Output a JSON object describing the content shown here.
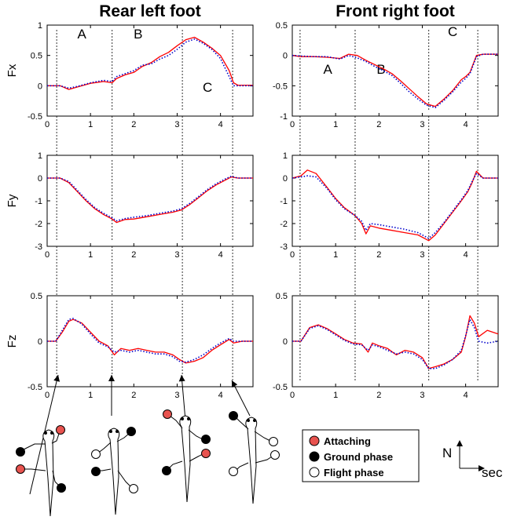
{
  "chart_data": [
    {
      "type": "line",
      "panel": "rear-fx",
      "title": "Rear left foot",
      "ylabel": "Fx",
      "xlim": [
        0,
        4.75
      ],
      "ylim": [
        -0.5,
        1
      ],
      "xticks": [
        "0",
        "1",
        "2",
        "3",
        "4"
      ],
      "yticks": [
        "1",
        "0.5",
        "0",
        "-0.5"
      ],
      "phase_lines": [
        0.22,
        1.5,
        3.12,
        4.28
      ],
      "phase_labels": [
        {
          "text": "A",
          "x": 0.8,
          "y": 0.78
        },
        {
          "text": "B",
          "x": 2.1,
          "y": 0.78
        },
        {
          "text": "C",
          "x": 3.7,
          "y": -0.1
        }
      ],
      "series": [
        {
          "style": "solid",
          "color": "#ff0000",
          "x": [
            0,
            0.3,
            0.5,
            0.7,
            1.0,
            1.3,
            1.5,
            1.6,
            1.8,
            2.0,
            2.2,
            2.4,
            2.6,
            2.8,
            3.0,
            3.2,
            3.4,
            3.6,
            3.8,
            4.0,
            4.2,
            4.3,
            4.4,
            4.75
          ],
          "y": [
            0,
            0,
            -0.06,
            -0.02,
            0.04,
            0.07,
            0.05,
            0.12,
            0.18,
            0.22,
            0.32,
            0.38,
            0.48,
            0.55,
            0.66,
            0.76,
            0.8,
            0.72,
            0.62,
            0.5,
            0.25,
            0.05,
            0.01,
            0.01
          ]
        },
        {
          "style": "dotted",
          "color": "#0000cc",
          "x": [
            0,
            0.3,
            0.5,
            0.7,
            1.0,
            1.3,
            1.5,
            1.6,
            1.8,
            2.0,
            2.2,
            2.4,
            2.6,
            2.8,
            3.0,
            3.2,
            3.4,
            3.6,
            3.8,
            4.0,
            4.2,
            4.3,
            4.4,
            4.75
          ],
          "y": [
            0,
            0,
            -0.04,
            -0.01,
            0.05,
            0.09,
            0.07,
            0.15,
            0.2,
            0.25,
            0.34,
            0.36,
            0.44,
            0.5,
            0.6,
            0.72,
            0.77,
            0.7,
            0.6,
            0.45,
            0.15,
            0.0,
            0.0,
            0.0
          ]
        }
      ]
    },
    {
      "type": "line",
      "panel": "front-fx",
      "title": "Front right foot",
      "ylabel": "",
      "xlim": [
        0,
        4.75
      ],
      "ylim": [
        -1,
        0.5
      ],
      "xticks": [
        "0",
        "1",
        "2",
        "3",
        "4"
      ],
      "yticks": [
        "0.5",
        "0",
        "-0.5",
        "-1"
      ],
      "phase_lines": [
        0.18,
        1.45,
        3.15,
        4.28
      ],
      "phase_labels": [
        {
          "text": "A",
          "x": 0.82,
          "y": -0.3
        },
        {
          "text": "B",
          "x": 2.05,
          "y": -0.3
        },
        {
          "text": "C",
          "x": 3.7,
          "y": 0.32
        }
      ],
      "series": [
        {
          "style": "solid",
          "color": "#ff0000",
          "x": [
            0,
            0.2,
            0.5,
            0.8,
            1.1,
            1.3,
            1.5,
            1.7,
            1.9,
            2.1,
            2.3,
            2.5,
            2.7,
            2.9,
            3.1,
            3.3,
            3.5,
            3.7,
            3.9,
            4.0,
            4.1,
            4.25,
            4.4,
            4.75
          ],
          "y": [
            0,
            -0.02,
            -0.02,
            -0.03,
            -0.05,
            0.02,
            0.0,
            -0.08,
            -0.15,
            -0.22,
            -0.3,
            -0.42,
            -0.55,
            -0.68,
            -0.8,
            -0.84,
            -0.72,
            -0.58,
            -0.4,
            -0.35,
            -0.28,
            0.0,
            0.02,
            0.02
          ]
        },
        {
          "style": "dotted",
          "color": "#0000cc",
          "x": [
            0,
            0.2,
            0.5,
            0.8,
            1.1,
            1.3,
            1.5,
            1.7,
            1.9,
            2.1,
            2.3,
            2.5,
            2.7,
            2.9,
            3.1,
            3.3,
            3.5,
            3.7,
            3.9,
            4.0,
            4.1,
            4.25,
            4.4,
            4.75
          ],
          "y": [
            0,
            -0.01,
            -0.02,
            -0.02,
            -0.06,
            0.0,
            -0.04,
            -0.1,
            -0.18,
            -0.25,
            -0.33,
            -0.46,
            -0.6,
            -0.72,
            -0.82,
            -0.86,
            -0.74,
            -0.6,
            -0.44,
            -0.38,
            -0.3,
            -0.02,
            0.02,
            0.02
          ]
        }
      ]
    },
    {
      "type": "line",
      "panel": "rear-fy",
      "ylabel": "Fy",
      "xlim": [
        0,
        4.75
      ],
      "ylim": [
        -3,
        1
      ],
      "xticks": [
        "0",
        "1",
        "2",
        "3",
        "4"
      ],
      "yticks": [
        "1",
        "0",
        "-1",
        "-2",
        "-3"
      ],
      "phase_lines": [
        0.22,
        1.5,
        3.12,
        4.28
      ],
      "series": [
        {
          "style": "solid",
          "color": "#ff0000",
          "x": [
            0,
            0.3,
            0.5,
            0.7,
            0.9,
            1.1,
            1.3,
            1.5,
            1.6,
            1.8,
            2.0,
            2.3,
            2.6,
            2.9,
            3.1,
            3.3,
            3.5,
            3.7,
            3.9,
            4.1,
            4.25,
            4.4,
            4.75
          ],
          "y": [
            0,
            0,
            -0.2,
            -0.6,
            -1.0,
            -1.35,
            -1.6,
            -1.8,
            -1.95,
            -1.82,
            -1.8,
            -1.7,
            -1.6,
            -1.5,
            -1.4,
            -1.15,
            -0.85,
            -0.55,
            -0.3,
            -0.1,
            0.05,
            0.0,
            0.0
          ]
        },
        {
          "style": "dotted",
          "color": "#0000cc",
          "x": [
            0,
            0.3,
            0.5,
            0.7,
            0.9,
            1.1,
            1.3,
            1.5,
            1.6,
            1.8,
            2.0,
            2.3,
            2.6,
            2.9,
            3.1,
            3.3,
            3.5,
            3.7,
            3.9,
            4.1,
            4.25,
            4.4,
            4.75
          ],
          "y": [
            0,
            0,
            -0.15,
            -0.55,
            -0.95,
            -1.3,
            -1.55,
            -1.75,
            -1.88,
            -1.78,
            -1.72,
            -1.65,
            -1.55,
            -1.45,
            -1.35,
            -1.1,
            -0.8,
            -0.5,
            -0.25,
            -0.05,
            0.08,
            0.0,
            0.0
          ]
        }
      ]
    },
    {
      "type": "line",
      "panel": "front-fy",
      "ylabel": "",
      "xlim": [
        0,
        4.75
      ],
      "ylim": [
        -3,
        1
      ],
      "xticks": [
        "0",
        "1",
        "2",
        "3",
        "4"
      ],
      "yticks": [
        "1",
        "0",
        "-1",
        "-2",
        "-3"
      ],
      "phase_lines": [
        0.18,
        1.45,
        3.15,
        4.28
      ],
      "series": [
        {
          "style": "solid",
          "color": "#ff0000",
          "x": [
            0,
            0.2,
            0.35,
            0.55,
            0.8,
            1.0,
            1.2,
            1.45,
            1.6,
            1.7,
            1.8,
            2.0,
            2.3,
            2.6,
            2.9,
            3.15,
            3.3,
            3.5,
            3.7,
            3.9,
            4.05,
            4.15,
            4.25,
            4.4,
            4.75
          ],
          "y": [
            0,
            0.1,
            0.35,
            0.2,
            -0.4,
            -0.9,
            -1.3,
            -1.65,
            -2.0,
            -2.45,
            -2.1,
            -2.2,
            -2.3,
            -2.4,
            -2.5,
            -2.75,
            -2.5,
            -2.0,
            -1.5,
            -1.0,
            -0.6,
            -0.2,
            0.3,
            0.0,
            0.0
          ]
        },
        {
          "style": "dotted",
          "color": "#0000cc",
          "x": [
            0,
            0.2,
            0.35,
            0.55,
            0.8,
            1.0,
            1.2,
            1.45,
            1.6,
            1.7,
            1.8,
            2.0,
            2.3,
            2.6,
            2.9,
            3.15,
            3.3,
            3.5,
            3.7,
            3.9,
            4.05,
            4.15,
            4.25,
            4.4,
            4.75
          ],
          "y": [
            0,
            0.05,
            0.1,
            0.05,
            -0.45,
            -0.95,
            -1.35,
            -1.65,
            -1.9,
            -2.3,
            -2.0,
            -2.05,
            -2.15,
            -2.25,
            -2.4,
            -2.65,
            -2.4,
            -1.95,
            -1.45,
            -0.95,
            -0.55,
            -0.15,
            0.2,
            0.0,
            0.0
          ]
        }
      ]
    },
    {
      "type": "line",
      "panel": "rear-fz",
      "ylabel": "Fz",
      "xlim": [
        0,
        4.75
      ],
      "ylim": [
        -0.5,
        0.5
      ],
      "xticks": [
        "0",
        "1",
        "2",
        "3",
        "4"
      ],
      "yticks": [
        "0.5",
        "0",
        "-0.5"
      ],
      "phase_lines": [
        0.22,
        1.5,
        3.12,
        4.28
      ],
      "series": [
        {
          "style": "solid",
          "color": "#ff0000",
          "x": [
            0,
            0.2,
            0.35,
            0.5,
            0.6,
            0.8,
            1.0,
            1.2,
            1.4,
            1.55,
            1.7,
            1.9,
            2.1,
            2.3,
            2.5,
            2.7,
            2.9,
            3.05,
            3.2,
            3.4,
            3.6,
            3.8,
            4.0,
            4.2,
            4.3,
            4.5,
            4.75
          ],
          "y": [
            0,
            0.0,
            0.1,
            0.22,
            0.24,
            0.2,
            0.1,
            0.0,
            -0.05,
            -0.15,
            -0.08,
            -0.1,
            -0.08,
            -0.1,
            -0.12,
            -0.12,
            -0.15,
            -0.2,
            -0.24,
            -0.22,
            -0.18,
            -0.1,
            -0.04,
            0.02,
            -0.02,
            0.0,
            0.0
          ]
        },
        {
          "style": "dotted",
          "color": "#0000cc",
          "x": [
            0,
            0.2,
            0.35,
            0.5,
            0.6,
            0.8,
            1.0,
            1.2,
            1.4,
            1.55,
            1.7,
            1.9,
            2.1,
            2.3,
            2.5,
            2.7,
            2.9,
            3.05,
            3.2,
            3.4,
            3.6,
            3.8,
            4.0,
            4.2,
            4.3,
            4.5,
            4.75
          ],
          "y": [
            0,
            0.0,
            0.12,
            0.24,
            0.25,
            0.19,
            0.08,
            -0.02,
            -0.06,
            -0.12,
            -0.1,
            -0.12,
            -0.1,
            -0.12,
            -0.14,
            -0.14,
            -0.17,
            -0.22,
            -0.23,
            -0.2,
            -0.15,
            -0.08,
            -0.02,
            0.03,
            0.0,
            0.0,
            0.0
          ]
        }
      ]
    },
    {
      "type": "line",
      "panel": "front-fz",
      "ylabel": "",
      "xlim": [
        0,
        4.75
      ],
      "ylim": [
        -0.5,
        0.5
      ],
      "xticks": [
        "0",
        "1",
        "2",
        "3",
        "4"
      ],
      "yticks": [
        "0.5",
        "0",
        "-0.5"
      ],
      "phase_lines": [
        0.18,
        1.45,
        3.15,
        4.28
      ],
      "series": [
        {
          "style": "solid",
          "color": "#ff0000",
          "x": [
            0,
            0.2,
            0.4,
            0.6,
            0.8,
            1.0,
            1.2,
            1.4,
            1.6,
            1.75,
            1.85,
            2.0,
            2.2,
            2.4,
            2.6,
            2.8,
            3.0,
            3.15,
            3.3,
            3.5,
            3.7,
            3.9,
            4.0,
            4.1,
            4.2,
            4.3,
            4.5,
            4.75
          ],
          "y": [
            0,
            0.0,
            0.15,
            0.18,
            0.14,
            0.08,
            0.02,
            -0.02,
            -0.03,
            -0.12,
            -0.02,
            -0.05,
            -0.08,
            -0.15,
            -0.1,
            -0.12,
            -0.18,
            -0.3,
            -0.28,
            -0.25,
            -0.2,
            -0.12,
            0.05,
            0.28,
            0.2,
            0.05,
            0.12,
            0.08
          ]
        },
        {
          "style": "dotted",
          "color": "#0000cc",
          "x": [
            0,
            0.2,
            0.4,
            0.6,
            0.8,
            1.0,
            1.2,
            1.4,
            1.6,
            1.75,
            1.85,
            2.0,
            2.2,
            2.4,
            2.6,
            2.8,
            3.0,
            3.15,
            3.3,
            3.5,
            3.7,
            3.9,
            4.0,
            4.1,
            4.2,
            4.3,
            4.5,
            4.75
          ],
          "y": [
            0,
            0.0,
            0.14,
            0.17,
            0.13,
            0.07,
            0.01,
            -0.03,
            -0.04,
            -0.1,
            -0.04,
            -0.06,
            -0.1,
            -0.14,
            -0.12,
            -0.14,
            -0.2,
            -0.3,
            -0.3,
            -0.26,
            -0.2,
            -0.1,
            0.06,
            0.24,
            0.15,
            0.0,
            -0.02,
            0.0
          ]
        }
      ]
    }
  ],
  "legend": {
    "items": [
      {
        "label": "Attaching",
        "color": "#e8534f"
      },
      {
        "label": "Ground phase",
        "color": "#000000"
      },
      {
        "label": "Flight phase",
        "color": "#ffffff"
      }
    ]
  },
  "axes_indicator": {
    "vertical": "N",
    "horizontal": "sec"
  }
}
